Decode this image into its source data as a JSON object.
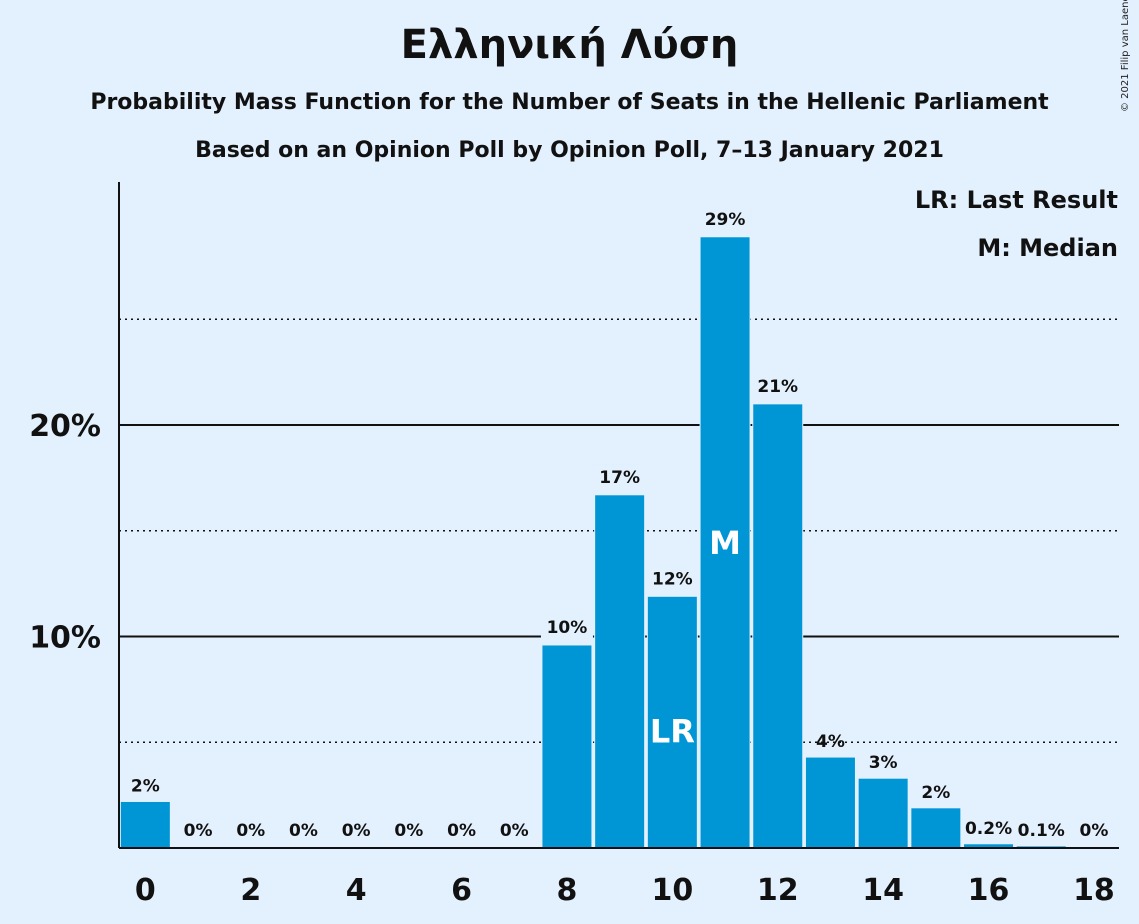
{
  "title": "Ελληνική Λύση",
  "subtitle1": "Probability Mass Function for the Number of Seats in the Hellenic Parliament",
  "subtitle2": "Based on an Opinion Poll by Opinion Poll, 7–13 January 2021",
  "copyright": "© 2021 Filip van Laenen",
  "legend": {
    "last_result": "LR: Last Result",
    "median": "M: Median"
  },
  "colors": {
    "background": "#e3f0fd",
    "bar": "#0096d6",
    "axis": "#111111"
  },
  "chart_data": {
    "type": "bar",
    "categories": [
      0,
      1,
      2,
      3,
      4,
      5,
      6,
      7,
      8,
      9,
      10,
      11,
      12,
      13,
      14,
      15,
      16,
      17,
      18
    ],
    "values": [
      2.2,
      0,
      0,
      0,
      0,
      0,
      0,
      0,
      9.6,
      16.7,
      11.9,
      28.9,
      21.0,
      4.3,
      3.3,
      1.9,
      0.2,
      0.1,
      0
    ],
    "value_labels": [
      "2%",
      "0%",
      "0%",
      "0%",
      "0%",
      "0%",
      "0%",
      "0%",
      "10%",
      "17%",
      "12%",
      "29%",
      "21%",
      "4%",
      "3%",
      "2%",
      "0.2%",
      "0.1%",
      "0%"
    ],
    "x_tick_labels": [
      "0",
      "2",
      "4",
      "6",
      "8",
      "10",
      "12",
      "14",
      "16",
      "18"
    ],
    "x_ticks": [
      0,
      2,
      4,
      6,
      8,
      10,
      12,
      14,
      16,
      18
    ],
    "y_tick_labels": [
      "10%",
      "20%"
    ],
    "y_ticks": [
      10,
      20
    ],
    "y_minor_gridlines": [
      5,
      15,
      25
    ],
    "ylim": [
      0,
      31.5
    ],
    "last_result": {
      "seats": 10,
      "label": "LR"
    },
    "median": {
      "seats": 11,
      "label": "M"
    }
  }
}
